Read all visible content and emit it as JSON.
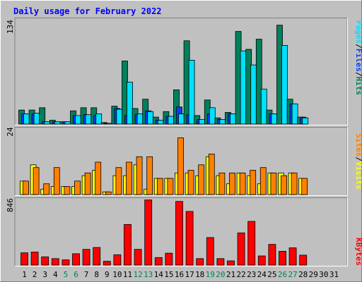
{
  "title": "Daily usage for February 2022",
  "colors": {
    "background": "#c0c0c0",
    "hits": "#00805c",
    "files": "#0040ff",
    "pages": "#00e0ff",
    "visits": "#ffff00",
    "sites": "#ff8000",
    "kbytes": "#ff0000",
    "title": "#0000ff",
    "weekend_label": "#00805c"
  },
  "chart_data": [
    {
      "type": "bar",
      "panel": "top",
      "ymax_label": "134",
      "ylim": [
        0,
        134
      ],
      "categories": [
        "1",
        "2",
        "3",
        "4",
        "5",
        "6",
        "7",
        "8",
        "9",
        "10",
        "11",
        "12",
        "13",
        "14",
        "15",
        "16",
        "17",
        "18",
        "19",
        "20",
        "21",
        "22",
        "23",
        "24",
        "25",
        "26",
        "27",
        "28",
        "29",
        "30",
        "31"
      ],
      "weekend_days": [
        "5",
        "6",
        "12",
        "13",
        "19",
        "20",
        "26",
        "27"
      ],
      "legend_parts": [
        "Hits",
        "/",
        "Files",
        "/",
        "Pages"
      ],
      "series": [
        {
          "name": "Hits",
          "values": [
            18,
            18,
            21,
            5,
            3,
            17,
            21,
            21,
            2,
            23,
            81,
            20,
            32,
            9,
            16,
            44,
            107,
            11,
            31,
            8,
            15,
            119,
            96,
            109,
            18,
            127,
            32,
            9,
            0,
            0,
            0
          ]
        },
        {
          "name": "Files",
          "values": [
            13,
            13,
            3,
            3,
            3,
            11,
            12,
            11,
            1,
            20,
            11,
            12,
            17,
            5,
            10,
            22,
            12,
            6,
            13,
            6,
            13,
            0,
            0,
            0,
            13,
            0,
            26,
            9,
            0,
            0,
            0
          ]
        },
        {
          "name": "Pages",
          "values": [
            13,
            14,
            3,
            3,
            3,
            11,
            12,
            13,
            1,
            19,
            54,
            13,
            16,
            5,
            10,
            13,
            82,
            6,
            21,
            6,
            13,
            94,
            76,
            45,
            13,
            101,
            26,
            8,
            0,
            0,
            0
          ]
        }
      ]
    },
    {
      "type": "bar",
      "panel": "middle",
      "ymax_label": "24",
      "ylim": [
        0,
        24
      ],
      "categories": [
        "1",
        "2",
        "3",
        "4",
        "5",
        "6",
        "7",
        "8",
        "9",
        "10",
        "11",
        "12",
        "13",
        "14",
        "15",
        "16",
        "17",
        "18",
        "19",
        "20",
        "21",
        "22",
        "23",
        "24",
        "25",
        "26",
        "27",
        "28",
        "29",
        "30",
        "31"
      ],
      "legend_parts": [
        "Visits",
        "/",
        "Sites"
      ],
      "series": [
        {
          "name": "Visits",
          "values": [
            5,
            11,
            2,
            3,
            3,
            3,
            7,
            9,
            1,
            7,
            7,
            11,
            2,
            6,
            6,
            8,
            8,
            7,
            14,
            7,
            4,
            8,
            7,
            4,
            8,
            8,
            8,
            6,
            0,
            0,
            0
          ]
        },
        {
          "name": "Sites",
          "values": [
            5,
            10,
            4,
            10,
            3,
            5,
            8,
            12,
            1,
            10,
            12,
            14,
            14,
            6,
            6,
            21,
            9,
            11,
            15,
            8,
            8,
            8,
            9,
            10,
            8,
            7,
            8,
            6,
            0,
            0,
            0
          ]
        }
      ]
    },
    {
      "type": "bar",
      "panel": "bottom",
      "ymax_label": "846",
      "ylim": [
        0,
        846
      ],
      "categories": [
        "1",
        "2",
        "3",
        "4",
        "5",
        "6",
        "7",
        "8",
        "9",
        "10",
        "11",
        "12",
        "13",
        "14",
        "15",
        "16",
        "17",
        "18",
        "19",
        "20",
        "21",
        "22",
        "23",
        "24",
        "25",
        "26",
        "27",
        "28",
        "29",
        "30",
        "31"
      ],
      "legend_parts": [
        "KBytes"
      ],
      "series": [
        {
          "name": "KBytes",
          "values": [
            160,
            170,
            108,
            85,
            68,
            148,
            205,
            230,
            50,
            135,
            530,
            205,
            850,
            98,
            155,
            830,
            700,
            85,
            360,
            85,
            55,
            420,
            570,
            120,
            270,
            180,
            225,
            130,
            0,
            0,
            0
          ]
        }
      ]
    }
  ]
}
